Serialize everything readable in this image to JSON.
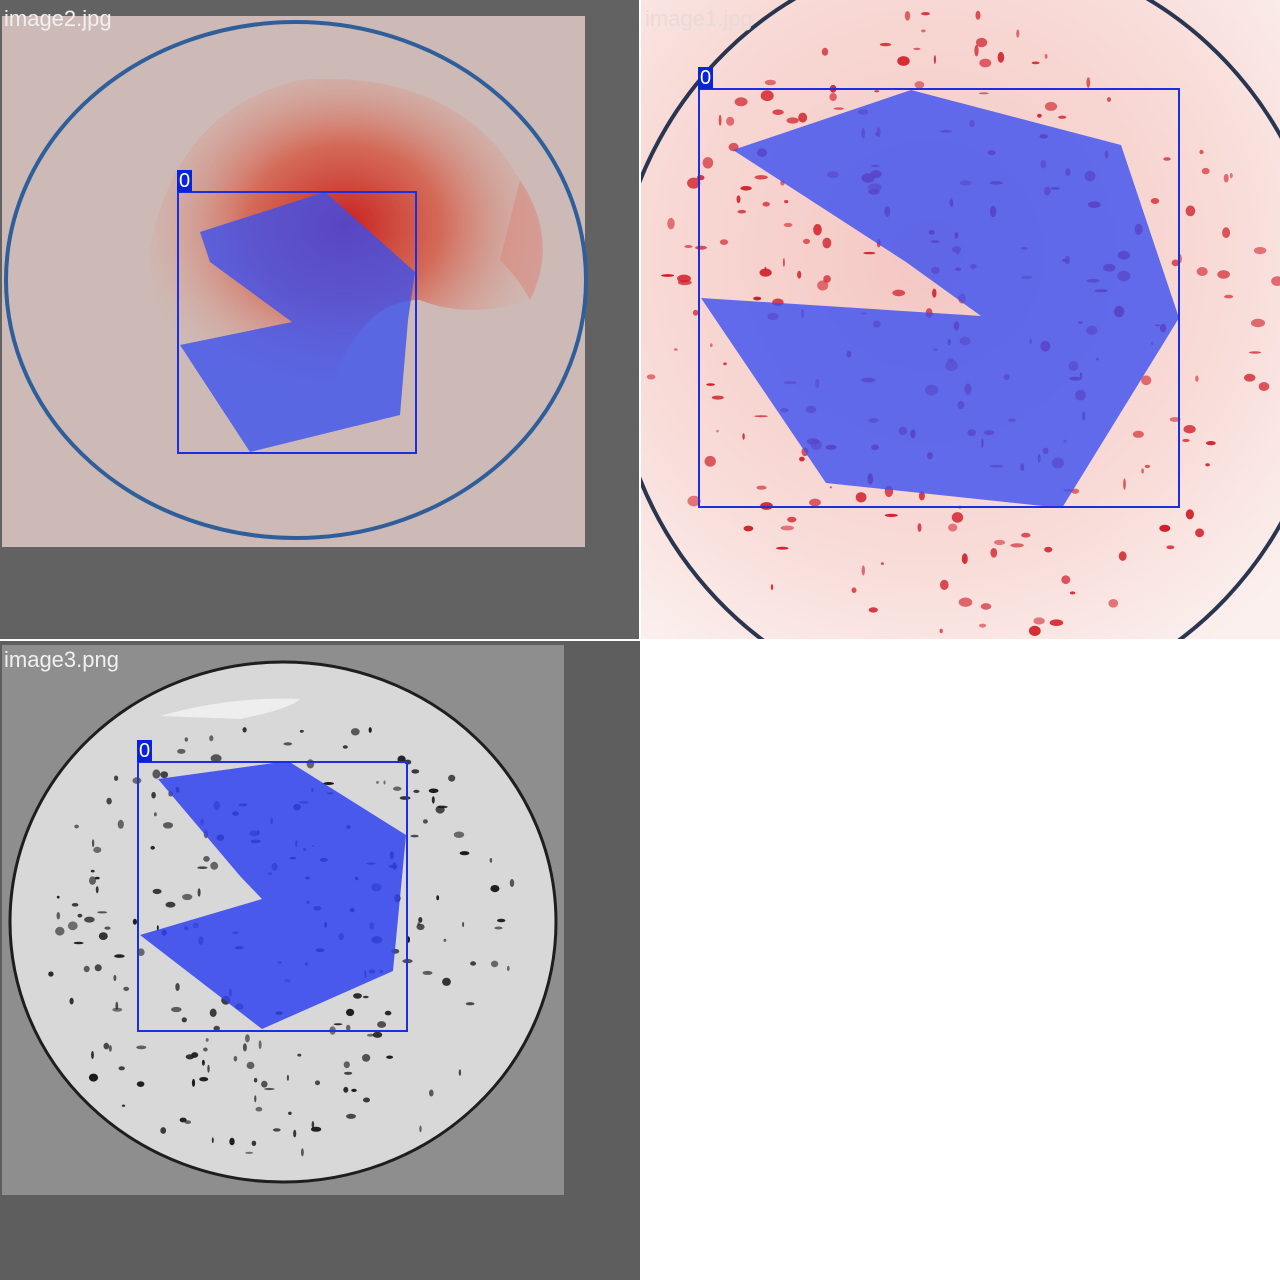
{
  "colors": {
    "page_background": "#ffffff",
    "letterbox": "#626262",
    "mask_fill": "#3a4ff0",
    "box_stroke": "#1a2fe0",
    "label_background": "#0a22d8",
    "label_text": "#ffffff",
    "caption_text": "#f0f0f0",
    "dish_ring_blue": "#2f5f9a",
    "dish_ring_dark": "#1e1e1e",
    "colony_red": "#d1202a",
    "colony_black": "#1a1a1a"
  },
  "tiles": [
    {
      "id": "tile-image2",
      "caption": "image2.jpg",
      "detection": {
        "class_label": "0"
      }
    },
    {
      "id": "tile-image1",
      "caption": "image1.jpg",
      "detection": {
        "class_label": "0"
      }
    },
    {
      "id": "tile-image3",
      "caption": "image3.png",
      "detection": {
        "class_label": "0"
      }
    }
  ]
}
